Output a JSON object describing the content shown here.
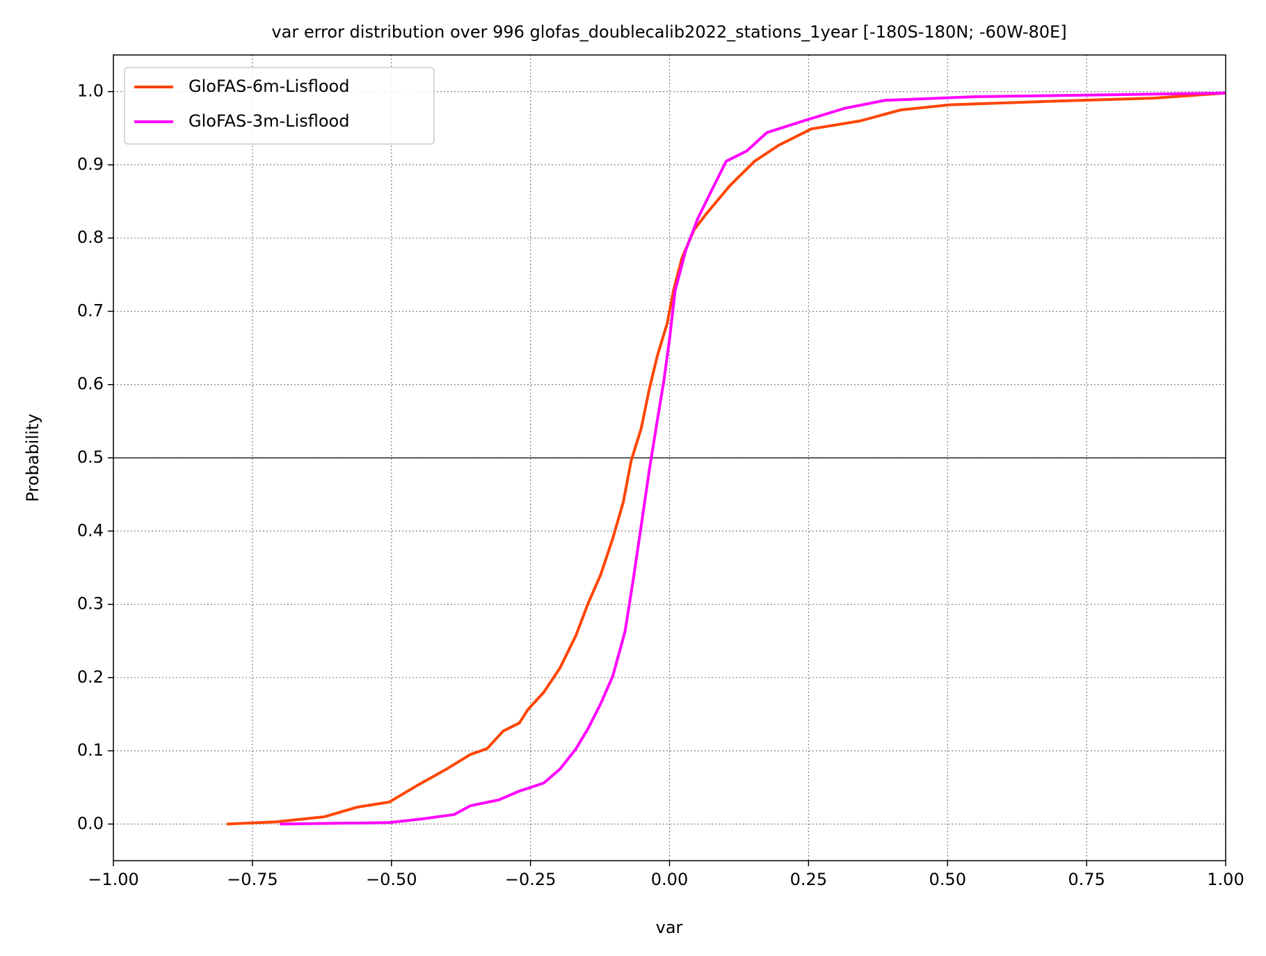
{
  "chart_data": {
    "type": "line",
    "title": "var error distribution over 996 glofas_doublecalib2022_stations_1year [-180S-180N; -60W-80E]",
    "xlabel": "var",
    "ylabel": "Probability",
    "xlim": [
      -1,
      1
    ],
    "ylim": [
      -0.05,
      1.05
    ],
    "xticks": [
      {
        "value": -1,
        "label": "−1.00"
      },
      {
        "value": -0.75,
        "label": "−0.75"
      },
      {
        "value": -0.5,
        "label": "−0.50"
      },
      {
        "value": -0.25,
        "label": "−0.25"
      },
      {
        "value": 0,
        "label": "0.00"
      },
      {
        "value": 0.25,
        "label": "0.25"
      },
      {
        "value": 0.5,
        "label": "0.50"
      },
      {
        "value": 0.75,
        "label": "0.75"
      },
      {
        "value": 1,
        "label": "1.00"
      }
    ],
    "yticks": [
      {
        "value": 0,
        "label": "0.0"
      },
      0.1,
      0.2,
      0.3,
      0.4,
      0.5,
      0.6,
      0.7,
      0.8,
      0.9,
      {
        "value": 1,
        "label": "1.0"
      }
    ],
    "grid": true,
    "hline": 0.5,
    "legend": "upper left",
    "series": [
      {
        "name": "GloFAS-6m-Lisflood",
        "color": "#ff4500",
        "x": [
          -0.796,
          -0.708,
          -0.62,
          -0.562,
          -0.504,
          -0.453,
          -0.401,
          -0.358,
          -0.328,
          -0.299,
          -0.27,
          -0.255,
          -0.226,
          -0.197,
          -0.168,
          -0.146,
          -0.124,
          -0.102,
          -0.083,
          -0.069,
          -0.051,
          -0.036,
          -0.022,
          -0.004,
          0.007,
          0.022,
          0.044,
          0.066,
          0.109,
          0.153,
          0.197,
          0.255,
          0.343,
          0.416,
          0.504,
          0.693,
          0.869,
          1.0
        ],
        "values": [
          0.0,
          0.003,
          0.01,
          0.023,
          0.03,
          0.053,
          0.075,
          0.095,
          0.103,
          0.127,
          0.138,
          0.156,
          0.18,
          0.213,
          0.258,
          0.302,
          0.34,
          0.39,
          0.44,
          0.496,
          0.54,
          0.595,
          0.639,
          0.684,
          0.728,
          0.772,
          0.811,
          0.833,
          0.872,
          0.905,
          0.927,
          0.949,
          0.96,
          0.975,
          0.982,
          0.987,
          0.991,
          0.998
        ]
      },
      {
        "name": "GloFAS-3m-Lisflood",
        "color": "#ff00ff",
        "x": [
          -0.701,
          -0.504,
          -0.445,
          -0.387,
          -0.358,
          -0.307,
          -0.27,
          -0.226,
          -0.197,
          -0.168,
          -0.146,
          -0.124,
          -0.102,
          -0.08,
          -0.066,
          -0.051,
          -0.036,
          -0.022,
          -0.01,
          0.0,
          0.01,
          0.029,
          0.051,
          0.073,
          0.102,
          0.139,
          0.175,
          0.241,
          0.314,
          0.387,
          0.547,
          1.0
        ],
        "values": [
          0.0,
          0.002,
          0.007,
          0.013,
          0.025,
          0.033,
          0.045,
          0.056,
          0.075,
          0.103,
          0.131,
          0.164,
          0.202,
          0.263,
          0.33,
          0.407,
          0.485,
          0.551,
          0.606,
          0.662,
          0.728,
          0.783,
          0.827,
          0.861,
          0.905,
          0.919,
          0.944,
          0.96,
          0.977,
          0.988,
          0.993,
          0.998
        ]
      }
    ]
  }
}
